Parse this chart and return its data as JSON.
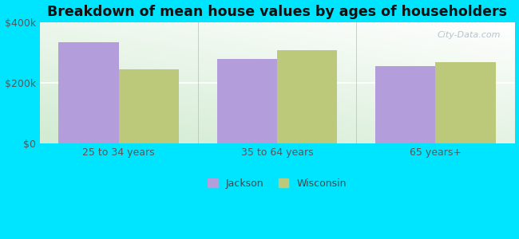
{
  "title": "Breakdown of mean house values by ages of householders",
  "categories": [
    "25 to 34 years",
    "35 to 64 years",
    "65 years+"
  ],
  "jackson_values": [
    335000,
    278000,
    255000
  ],
  "wisconsin_values": [
    245000,
    308000,
    268000
  ],
  "jackson_color": "#b39ddb",
  "wisconsin_color": "#bcc87a",
  "background_color": "#00e5ff",
  "ylim": [
    0,
    400000
  ],
  "yticks": [
    0,
    200000,
    400000
  ],
  "ytick_labels": [
    "$0",
    "$200k",
    "$400k"
  ],
  "legend_jackson": "Jackson",
  "legend_wisconsin": "Wisconsin",
  "bar_width": 0.38,
  "title_fontsize": 12.5,
  "tick_fontsize": 9,
  "legend_fontsize": 9,
  "watermark": "City-Data.com"
}
